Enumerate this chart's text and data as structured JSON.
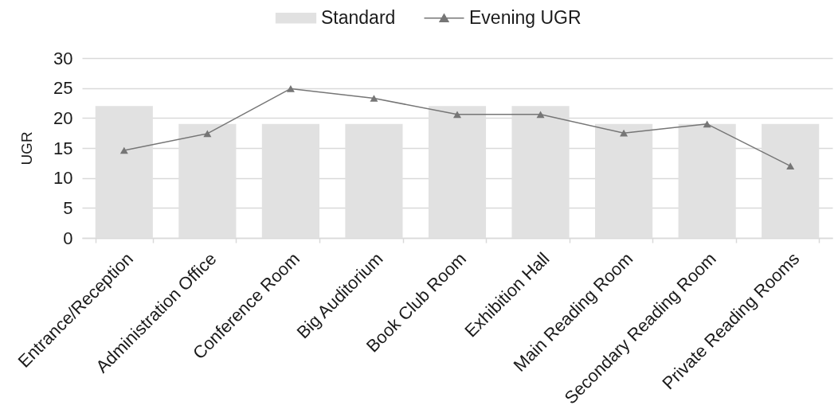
{
  "chart_data": {
    "type": "bar",
    "categories": [
      "Entrance/Reception",
      "Administration Office",
      "Conference Room",
      "Big Auditorium",
      "Book Club Room",
      "Exhibition Hall",
      "Main Reading Room",
      "Secondary Reading Room",
      "Private Reading Rooms"
    ],
    "series": [
      {
        "name": "Standard",
        "color": "#e1e1e1",
        "values": [
          22,
          19,
          19,
          19,
          22,
          22,
          19,
          19,
          19
        ]
      },
      {
        "name": "Evening UGR",
        "type": "line",
        "color": "#767676",
        "values": [
          14.6,
          17.4,
          24.9,
          23.3,
          20.6,
          20.6,
          17.5,
          19,
          12
        ]
      }
    ],
    "ylabel": "UGR",
    "ylim": [
      0,
      30
    ],
    "yticks": [
      0,
      5,
      10,
      15,
      20,
      25,
      30
    ],
    "grid": "y",
    "legend": "top",
    "marker": "triangle"
  }
}
